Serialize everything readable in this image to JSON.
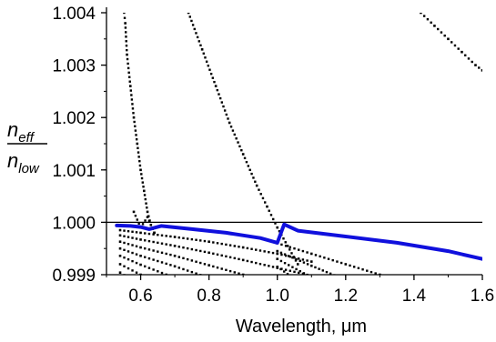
{
  "chart_data": {
    "type": "scatter",
    "xlabel": "Wavelength, μm",
    "ylabel_numerator": "n",
    "ylabel_numerator_sub": "eff",
    "ylabel_denominator": "n",
    "ylabel_denominator_sub": "low",
    "xlim": [
      0.5,
      1.6
    ],
    "ylim": [
      0.999,
      1.004
    ],
    "x_ticks": [
      "0.6",
      "0.8",
      "1.0",
      "1.2",
      "1.4",
      "1.6"
    ],
    "y_ticks": [
      "0.999",
      "1.000",
      "1.001",
      "1.002",
      "1.003",
      "1.004"
    ],
    "x_tick_values": [
      0.6,
      0.8,
      1.0,
      1.2,
      1.4,
      1.6
    ],
    "y_tick_values": [
      0.999,
      1.0,
      1.001,
      1.002,
      1.003,
      1.004
    ],
    "reference_line": {
      "y": 1.0,
      "color": "#000000"
    },
    "blue_curve": {
      "color": "#1010dd",
      "x": [
        0.53,
        0.57,
        0.6,
        0.625,
        0.66,
        0.75,
        0.85,
        0.95,
        1.0,
        1.02,
        1.06,
        1.2,
        1.35,
        1.5,
        1.6
      ],
      "y": [
        0.99994,
        0.99993,
        0.99991,
        0.99987,
        0.99993,
        0.99987,
        0.9998,
        0.9997,
        0.99961,
        0.99996,
        0.99984,
        0.99973,
        0.99961,
        0.99945,
        0.9993
      ]
    },
    "dotted_series": [
      {
        "x": [
          0.55,
          0.555,
          0.56,
          0.57,
          0.58,
          0.59,
          0.6,
          0.61,
          0.62,
          0.63,
          0.64
        ],
        "y": [
          1.0041,
          1.0038,
          1.0032,
          1.0026,
          1.002,
          1.0015,
          1.001,
          1.0006,
          1.0002,
          0.99995,
          0.9998
        ]
      },
      {
        "x": [
          0.74,
          0.78,
          0.82,
          0.86,
          0.9,
          0.94,
          0.97,
          1.0,
          1.03,
          1.06
        ],
        "y": [
          1.004,
          1.0033,
          1.0026,
          1.0019,
          1.0013,
          1.0007,
          1.0003,
          0.9999,
          0.99955,
          0.9992
        ]
      },
      {
        "x": [
          1.42,
          1.46,
          1.5,
          1.54,
          1.58,
          1.6
        ],
        "y": [
          1.004,
          1.00375,
          1.0035,
          1.00325,
          1.003,
          1.0029
        ]
      },
      {
        "x": [
          0.54,
          0.6,
          0.7,
          0.8,
          0.9,
          1.0,
          1.1
        ],
        "y": [
          0.99985,
          0.9998,
          0.99972,
          0.99963,
          0.99952,
          0.9994,
          0.99925
        ]
      },
      {
        "x": [
          0.54,
          0.6,
          0.7,
          0.8,
          0.9,
          1.0,
          1.1
        ],
        "y": [
          0.99975,
          0.99967,
          0.99955,
          0.99942,
          0.99928,
          0.99913,
          0.99898
        ]
      },
      {
        "x": [
          0.54,
          0.6,
          0.7,
          0.8,
          0.9,
          1.0,
          1.1
        ],
        "y": [
          0.99963,
          0.99952,
          0.99936,
          0.99918,
          0.999,
          0.99881,
          0.99862
        ]
      },
      {
        "x": [
          0.54,
          0.6,
          0.7,
          0.8,
          0.9,
          1.0
        ],
        "y": [
          0.9995,
          0.99936,
          0.99916,
          0.99894,
          0.9987,
          0.99848
        ]
      },
      {
        "x": [
          0.54,
          0.6,
          0.7,
          0.8,
          0.9
        ],
        "y": [
          0.99936,
          0.99919,
          0.99894,
          0.99866,
          0.99838
        ]
      },
      {
        "x": [
          0.54,
          0.6,
          0.7,
          0.8
        ],
        "y": [
          0.9992,
          0.999,
          0.9987,
          0.99835
        ]
      },
      {
        "x": [
          0.54,
          0.6,
          0.7
        ],
        "y": [
          0.99904,
          0.9988,
          0.99845
        ]
      },
      {
        "x": [
          1.0,
          1.1,
          1.2,
          1.3,
          1.4,
          1.5
        ],
        "y": [
          0.9996,
          0.9994,
          0.9992,
          0.999,
          0.9988,
          0.9986
        ]
      },
      {
        "x": [
          1.0,
          1.1,
          1.2,
          1.3,
          1.4
        ],
        "y": [
          0.99945,
          0.99917,
          0.9989,
          0.99862,
          0.99835
        ]
      },
      {
        "x": [
          1.0,
          1.1,
          1.2,
          1.3
        ],
        "y": [
          0.9993,
          0.99895,
          0.99858,
          0.99822
        ]
      },
      {
        "x": [
          1.0,
          1.1,
          1.2
        ],
        "y": [
          0.99915,
          0.9987,
          0.99825
        ]
      },
      {
        "x": [
          0.58,
          0.6,
          0.62,
          0.64
        ],
        "y": [
          1.0002,
          0.9999,
          1.0001,
          0.9998
        ]
      }
    ]
  }
}
